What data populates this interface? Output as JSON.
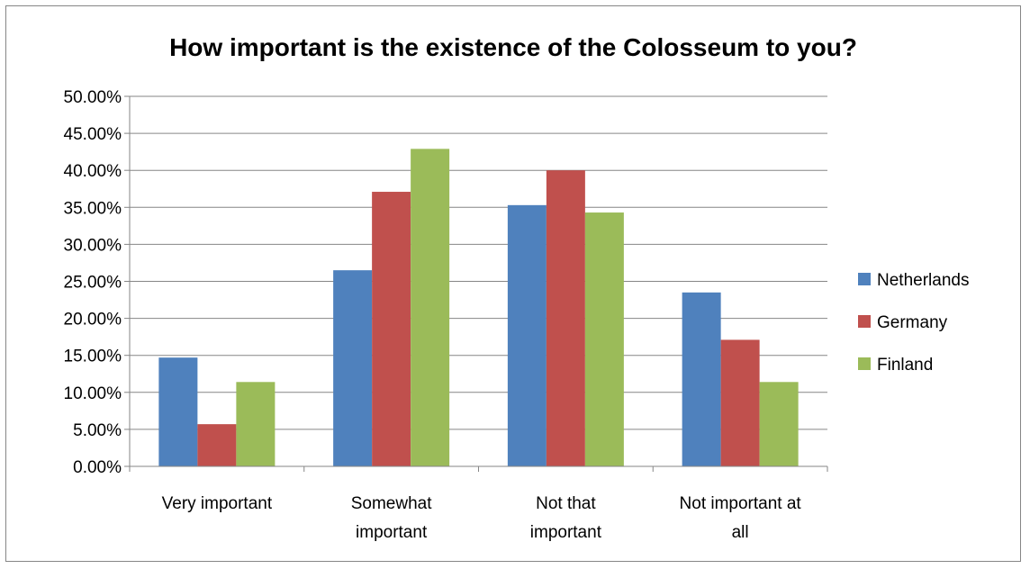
{
  "chart_data": {
    "type": "bar",
    "title": "How important is the existence of the Colosseum to you?",
    "xlabel": "",
    "ylabel": "",
    "ylim": [
      0,
      0.5
    ],
    "ytick_step": 0.05,
    "ytick_labels": [
      "0.00%",
      "5.00%",
      "10.00%",
      "15.00%",
      "20.00%",
      "25.00%",
      "30.00%",
      "35.00%",
      "40.00%",
      "45.00%",
      "50.00%"
    ],
    "grid": true,
    "legend_position": "right",
    "categories": [
      [
        "Very important"
      ],
      [
        "Somewhat",
        "important"
      ],
      [
        "Not that",
        "important"
      ],
      [
        "Not important at",
        "all"
      ]
    ],
    "series": [
      {
        "name": "Netherlands",
        "color": "#4F81BD",
        "values": [
          0.147,
          0.265,
          0.353,
          0.235
        ]
      },
      {
        "name": "Germany",
        "color": "#C0504D",
        "values": [
          0.057,
          0.371,
          0.4,
          0.171
        ]
      },
      {
        "name": "Finland",
        "color": "#9BBB59",
        "values": [
          0.114,
          0.429,
          0.343,
          0.114
        ]
      }
    ]
  }
}
